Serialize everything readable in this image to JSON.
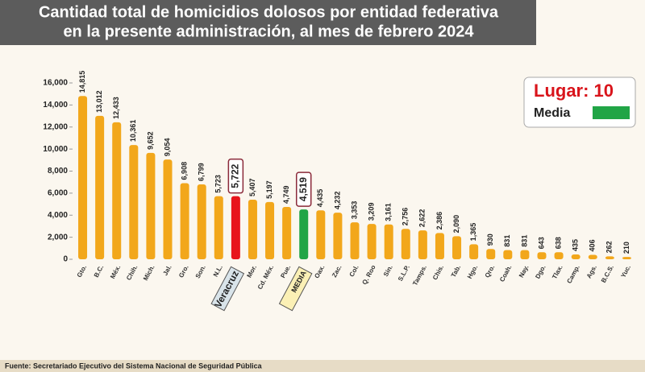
{
  "chart_data": {
    "type": "bar",
    "title": [
      "Cantidad total de homicidios dolosos por entidad federativa",
      "en la presente administración, al mes de febrero 2024"
    ],
    "categories": [
      "Gto.",
      "B.C.",
      "Méx.",
      "Chih.",
      "Mich.",
      "Jal.",
      "Gro.",
      "Son.",
      "N.L.",
      "Veracruz",
      "Mor.",
      "Cd. Méx.",
      "Pue.",
      "MEDIA",
      "Oax.",
      "Zac.",
      "Col.",
      "Q. Roo",
      "Sin.",
      "S.L.P.",
      "Tamps.",
      "Chis.",
      "Tab.",
      "Hgo.",
      "Qro.",
      "Coah.",
      "Nay.",
      "Dgo.",
      "Tlax.",
      "Camp.",
      "Ags.",
      "B.C.S.",
      "Yuc."
    ],
    "values": [
      14815,
      13012,
      12433,
      10361,
      9652,
      9054,
      6908,
      6799,
      5723,
      5722,
      5407,
      5197,
      4749,
      4519,
      4435,
      4232,
      3353,
      3209,
      3161,
      2756,
      2622,
      2386,
      2090,
      1365,
      930,
      831,
      831,
      643,
      638,
      435,
      406,
      262,
      210
    ],
    "value_labels": [
      "14,815",
      "13,012",
      "12,433",
      "10,361",
      "9,652",
      "9,054",
      "6,908",
      "6,799",
      "5,723",
      "5,722",
      "5,407",
      "5,197",
      "4,749",
      "4,519",
      "4,435",
      "4,232",
      "3,353",
      "3,209",
      "3,161",
      "2,756",
      "2,622",
      "2,386",
      "2,090",
      "1,365",
      "930",
      "831",
      "831",
      "643",
      "638",
      "435",
      "406",
      "262",
      "210"
    ],
    "color": "#f2a71b",
    "colors": [
      "#f2a71b",
      "#f2a71b",
      "#f2a71b",
      "#f2a71b",
      "#f2a71b",
      "#f2a71b",
      "#f2a71b",
      "#f2a71b",
      "#f2a71b",
      "#e8141b",
      "#f2a71b",
      "#f2a71b",
      "#f2a71b",
      "#21a546",
      "#f2a71b",
      "#f2a71b",
      "#f2a71b",
      "#f2a71b",
      "#f2a71b",
      "#f2a71b",
      "#f2a71b",
      "#f2a71b",
      "#f2a71b",
      "#f2a71b",
      "#f2a71b",
      "#f2a71b",
      "#f2a71b",
      "#f2a71b",
      "#f2a71b",
      "#f2a71b",
      "#f2a71b",
      "#f2a71b",
      "#f2a71b"
    ],
    "ylim": [
      0,
      16000
    ],
    "yticks": [
      0,
      {
        "value": 2000,
        "label": "2,000"
      },
      {
        "value": 4000,
        "label": "4,000"
      },
      {
        "value": 6000,
        "label": "6,000"
      },
      {
        "value": 8000,
        "label": "8,000"
      },
      {
        "value": 10000,
        "label": "10,000"
      },
      {
        "value": 12000,
        "label": "12,000"
      },
      {
        "value": 14000,
        "label": "14,000"
      },
      {
        "value": 16000,
        "label": "16,000"
      }
    ],
    "legend": {
      "place": "Lugar: 10",
      "label": "Media",
      "color": "#21a546"
    },
    "source": "Fuente: Secretariado Ejecutivo del Sistema Nacional de Seguridad Pública"
  }
}
